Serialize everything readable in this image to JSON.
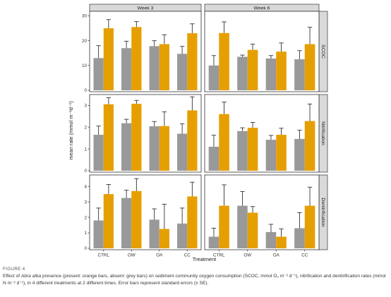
{
  "figure": {
    "label": "FIGURE 4",
    "caption_pre": "Effect of ",
    "caption_species": "Abra alba",
    "caption_post": " presence (present: orange bars, absent: grey bars) on sediment community oxygen consumption (SCOC, mmol O₂ m⁻² d⁻¹), nitrification and denitrification rates (mmol N m⁻² d⁻¹), in 4 different treatments at 2 different times. Error bars represent standard errors (± SE)."
  },
  "colors": {
    "absent": "#999999",
    "present": "#E69F00",
    "strip_fill": "#D9D9D9",
    "panel_border": "#333333",
    "error_bar": "#333333"
  },
  "chart_data": {
    "type": "bar",
    "xlabel": "Treatment",
    "ylabel": "mean rate (mmol m⁻²d⁻¹)",
    "categories": [
      "CTRL",
      "OW",
      "OA",
      "CC"
    ],
    "col_facets": [
      "Week 3",
      "Week 6"
    ],
    "row_facets": [
      {
        "name": "SCOC",
        "ylim": [
          0,
          31
        ],
        "yticks": [
          0,
          10,
          20,
          30
        ]
      },
      {
        "name": "Nitrification",
        "ylim": [
          0,
          3.4
        ],
        "yticks": [
          0,
          1,
          2,
          3
        ]
      },
      {
        "name": "Denitrification",
        "ylim": [
          0,
          4.6
        ],
        "yticks": [
          0,
          1,
          2,
          3,
          4
        ]
      }
    ],
    "series": [
      {
        "key": "absent",
        "legend": "absent: grey bars"
      },
      {
        "key": "present",
        "legend": "present: orange bars"
      }
    ],
    "panels": [
      {
        "row": 0,
        "col": 0,
        "absent": {
          "values": [
            13.0,
            17.0,
            17.8,
            14.7
          ],
          "se": [
            5.0,
            2.8,
            2.2,
            3.0
          ]
        },
        "present": {
          "values": [
            25.0,
            25.5,
            18.6,
            23.0
          ],
          "se": [
            3.5,
            2.2,
            3.8,
            3.8
          ]
        }
      },
      {
        "row": 0,
        "col": 1,
        "absent": {
          "values": [
            10.0,
            13.5,
            12.8,
            12.5
          ],
          "se": [
            4.0,
            0.7,
            1.2,
            3.5
          ]
        },
        "present": {
          "values": [
            23.1,
            16.3,
            15.6,
            18.6
          ],
          "se": [
            4.5,
            2.3,
            3.5,
            6.8
          ]
        }
      },
      {
        "row": 1,
        "col": 0,
        "absent": {
          "values": [
            1.65,
            2.18,
            2.04,
            1.7
          ],
          "se": [
            0.4,
            0.18,
            0.22,
            0.45
          ]
        },
        "present": {
          "values": [
            3.05,
            3.07,
            2.05,
            2.77
          ],
          "se": [
            0.3,
            0.16,
            0.65,
            0.62
          ]
        }
      },
      {
        "row": 1,
        "col": 1,
        "absent": {
          "values": [
            1.1,
            1.82,
            1.42,
            1.46
          ],
          "se": [
            0.53,
            0.15,
            0.2,
            0.4
          ]
        },
        "present": {
          "values": [
            2.6,
            1.97,
            1.65,
            2.28
          ],
          "se": [
            0.55,
            0.25,
            0.3,
            0.78
          ]
        }
      },
      {
        "row": 2,
        "col": 0,
        "absent": {
          "values": [
            1.8,
            3.25,
            1.85,
            1.6
          ],
          "se": [
            0.8,
            0.5,
            0.7,
            1.0
          ]
        },
        "present": {
          "values": [
            3.5,
            3.7,
            1.25,
            3.35
          ],
          "se": [
            0.62,
            0.8,
            1.6,
            0.92
          ]
        }
      },
      {
        "row": 2,
        "col": 1,
        "absent": {
          "values": [
            0.75,
            2.75,
            1.05,
            1.3
          ],
          "se": [
            0.55,
            0.92,
            0.5,
            1.0
          ]
        },
        "present": {
          "values": [
            2.75,
            2.3,
            0.75,
            2.75
          ],
          "se": [
            1.35,
            0.4,
            0.5,
            1.2
          ]
        }
      }
    ]
  }
}
